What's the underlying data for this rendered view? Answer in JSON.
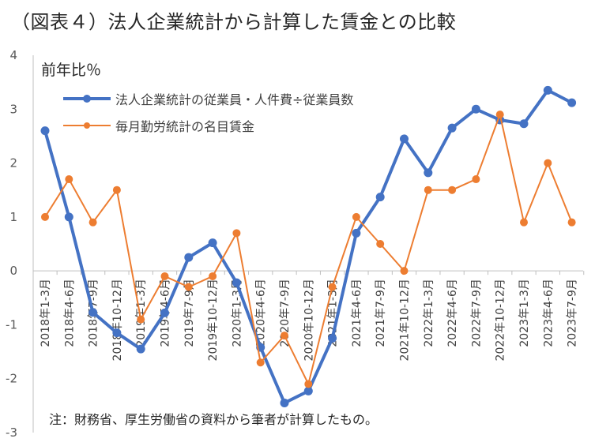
{
  "title": "（図表４）法人企業統計から計算した賃金との比較",
  "note": "注：財務省、厚生労働省の資料から筆者が計算したもの。",
  "chart_data": {
    "type": "line",
    "title": "（図表４）法人企業統計から計算した賃金との比較",
    "ylabel": "前年比％",
    "xlabel": "",
    "ylim": [
      -3,
      4
    ],
    "yticks": [
      "4",
      "3",
      "2",
      "1",
      "0",
      "-1",
      "-2",
      "-3"
    ],
    "categories": [
      "2018年1-3月",
      "2018年4-6月",
      "2018年7-9月",
      "2018年10-12月",
      "2019年1-3月",
      "2019年4-6月",
      "2019年7-9月",
      "2019年10-12月",
      "2020年1-3月",
      "2020年4-6月",
      "2020年7-9月",
      "2020年10-12月",
      "2021年1-3月",
      "2021年4-6月",
      "2021年7-9月",
      "2021年10-12月",
      "2022年1-3月",
      "2022年4-6月",
      "2022年7-9月",
      "2022年10-12月",
      "2023年1-3月",
      "2023年4-6月",
      "2023年7-9月"
    ],
    "series": [
      {
        "name": "法人企業統計の従業員・人件費÷従業員数",
        "color": "#4472C4",
        "values": [
          2.6,
          1.0,
          -0.77,
          -1.15,
          -1.45,
          -0.78,
          0.25,
          0.52,
          -0.22,
          -1.42,
          -2.45,
          -2.23,
          -1.25,
          0.7,
          1.37,
          2.45,
          1.82,
          2.65,
          3.0,
          2.8,
          2.73,
          3.35,
          3.12
        ]
      },
      {
        "name": "毎月勤労統計の名目賃金",
        "color": "#ED7D31",
        "values": [
          1.0,
          1.7,
          0.9,
          1.5,
          -0.9,
          -0.1,
          -0.3,
          -0.1,
          0.7,
          -1.7,
          -1.2,
          -2.1,
          -0.3,
          1.0,
          0.5,
          0.0,
          1.5,
          1.5,
          1.7,
          2.9,
          0.9,
          2.0,
          0.9
        ]
      }
    ],
    "legend": "top-left",
    "grid": false
  }
}
